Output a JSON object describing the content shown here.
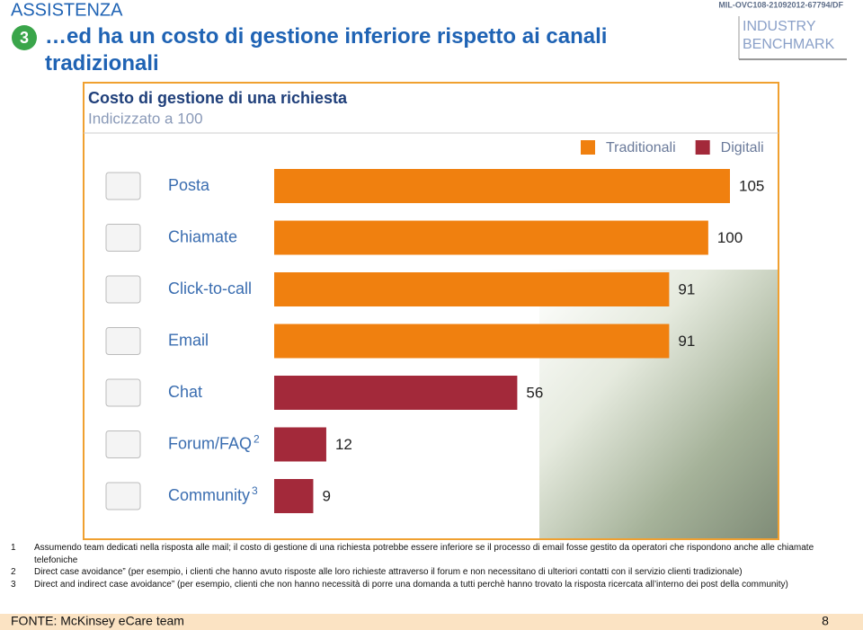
{
  "header": {
    "section": "ASSISTENZA",
    "step": "3",
    "title": "…ed ha un costo di gestione inferiore rispetto ai canali tradizionali",
    "doc_code": "MIL-OVC108-21092012-67794/DF",
    "badge": "INDUSTRY BENCHMARK"
  },
  "chart_data": {
    "type": "bar",
    "orientation": "horizontal",
    "title": "Costo di gestione di una richiesta",
    "subtitle": "Indicizzato a 100",
    "categories": [
      "Posta",
      "Chiamate",
      "Click-to-call",
      "Email",
      "Chat",
      "Forum/FAQ",
      "Community"
    ],
    "category_notes": [
      null,
      null,
      null,
      null,
      null,
      "2",
      "3"
    ],
    "series": [
      {
        "name": "Traditionali",
        "color": "#f0800f",
        "values": [
          105,
          100,
          91,
          91,
          null,
          null,
          null
        ]
      },
      {
        "name": "Digitali",
        "color": "#a3293a",
        "values": [
          null,
          null,
          null,
          null,
          56,
          12,
          9
        ]
      }
    ],
    "legend": "top-right"
  },
  "footnotes": [
    {
      "marker": "1",
      "text": "Assumendo team dedicati nella risposta alle mail; il costo di gestione di una richiesta potrebbe essere inferiore se il processo di email fosse gestito da operatori che rispondono anche alle chiamate telefoniche"
    },
    {
      "marker": "2",
      "text": "Direct case avoidance” (per esempio, i clienti che hanno avuto risposte alle loro richieste attraverso il forum e non necessitano di ulteriori contatti con il servizio clienti tradizionale)"
    },
    {
      "marker": "3",
      "text": "Direct and indirect case avoidance” (per esempio, clienti che non hanno necessità di porre una domanda a tutti perchè hanno trovato la risposta ricercata all’interno dei post della community)"
    }
  ],
  "footer": {
    "source": "FONTE: McKinsey eCare team",
    "page": "8"
  }
}
